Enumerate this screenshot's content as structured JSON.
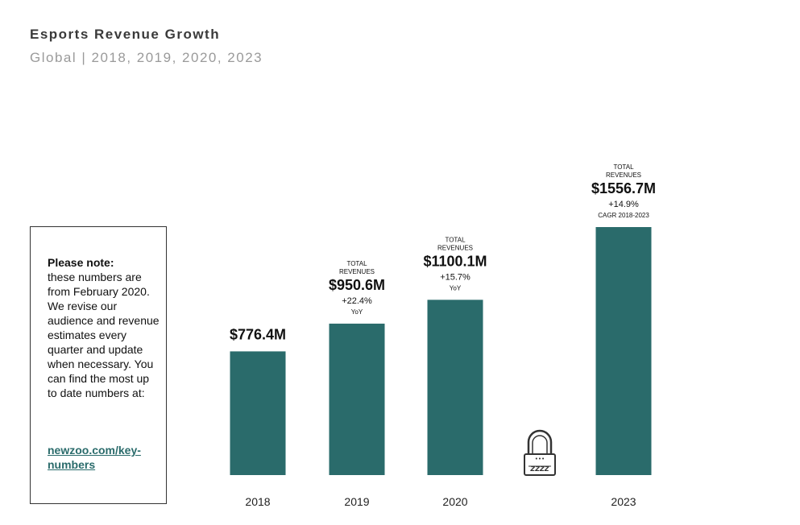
{
  "header": {
    "title": "Esports Revenue Growth",
    "subtitle": "Global | 2018, 2019, 2020, 2023"
  },
  "note": {
    "heading": "Please note:",
    "body": "these numbers are from February 2020. We revise our audience and revenue estimates every quarter and update when necessary. You can find the most up to date numbers at:",
    "link": "newzoo.com/key-numbers"
  },
  "colors": {
    "bar": "#2a6b6b",
    "text": "#111111"
  },
  "lock_icon": "lock-icon",
  "chart_data": {
    "type": "bar",
    "categories": [
      "2018",
      "2019",
      "2020",
      "2023"
    ],
    "values": [
      776.4,
      950.6,
      1100.1,
      1556.7
    ],
    "value_labels": [
      "$776.4M",
      "$950.6M",
      "$1100.1M",
      "$1556.7M"
    ],
    "top_labels": [
      "",
      "TOTAL REVENUES",
      "TOTAL REVENUES",
      "TOTAL REVENUES"
    ],
    "growth_labels": [
      "",
      "+22.4%",
      "+15.7%",
      "+14.9%"
    ],
    "growth_notes": [
      "",
      "YoY",
      "YoY",
      "CAGR 2018-2023"
    ],
    "ylim": [
      0,
      1556.7
    ],
    "grid": false,
    "title": "Esports Revenue Growth",
    "subtitle": "Global | 2018, 2019, 2020, 2023"
  }
}
